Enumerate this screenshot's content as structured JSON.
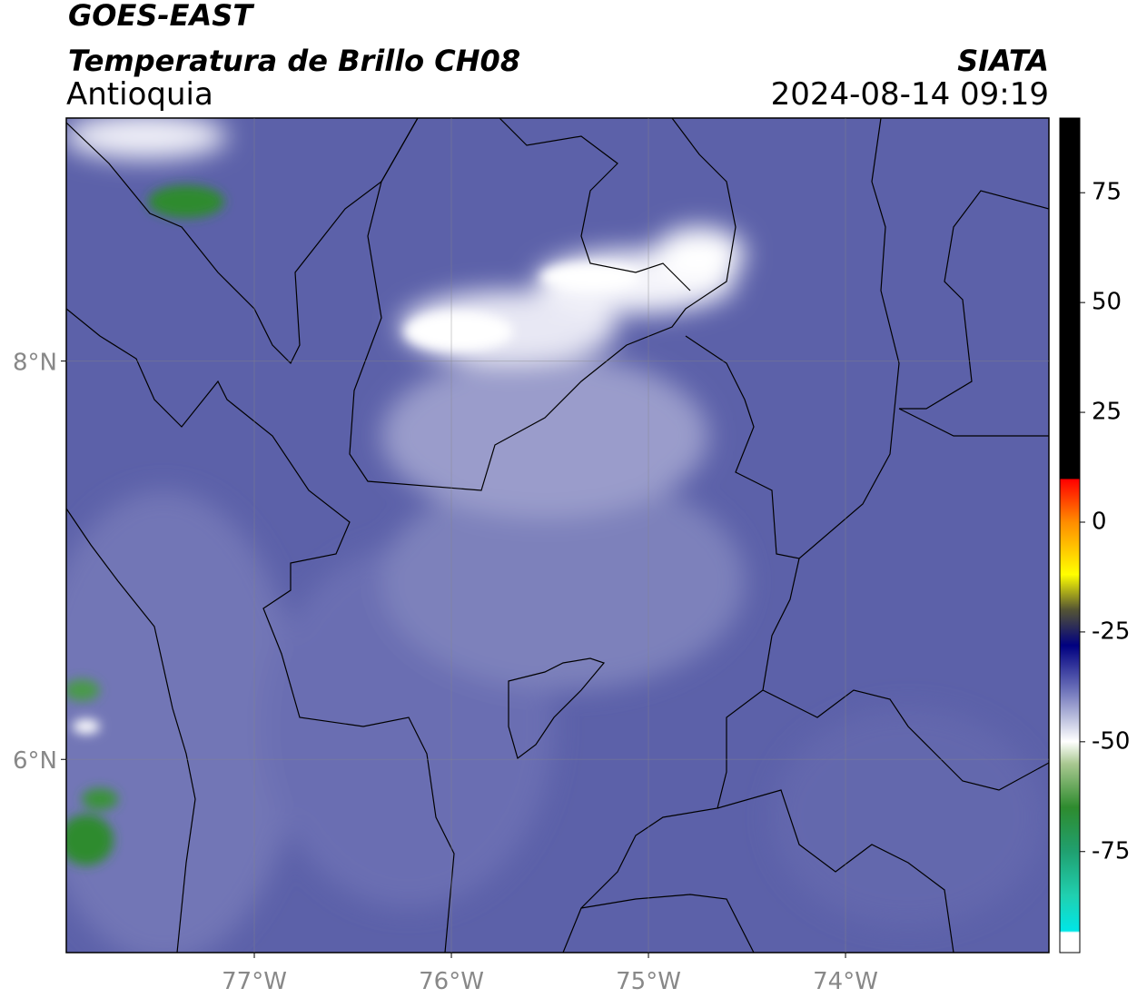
{
  "header": {
    "title": "GOES-EAST",
    "subtitle": "Temperatura de Brillo CH08",
    "region": "Antioquia",
    "source": "SIATA",
    "datetime": "2024-08-14 09:19"
  },
  "map": {
    "lon_range": [
      -77.954,
      -72.968
    ],
    "lat_range": [
      5.03,
      9.22
    ],
    "lon_ticks": [
      {
        "value": -77,
        "label": "77°W"
      },
      {
        "value": -76,
        "label": "76°W"
      },
      {
        "value": -75,
        "label": "75°W"
      },
      {
        "value": -74,
        "label": "74°W"
      }
    ],
    "lat_ticks": [
      {
        "value": 8,
        "label": "8°N"
      },
      {
        "value": 6,
        "label": "6°N"
      }
    ],
    "grid": true
  },
  "colorbar": {
    "range": [
      -98,
      92
    ],
    "ticks": [
      75,
      50,
      25,
      0,
      -25,
      -50,
      -75
    ]
  }
}
